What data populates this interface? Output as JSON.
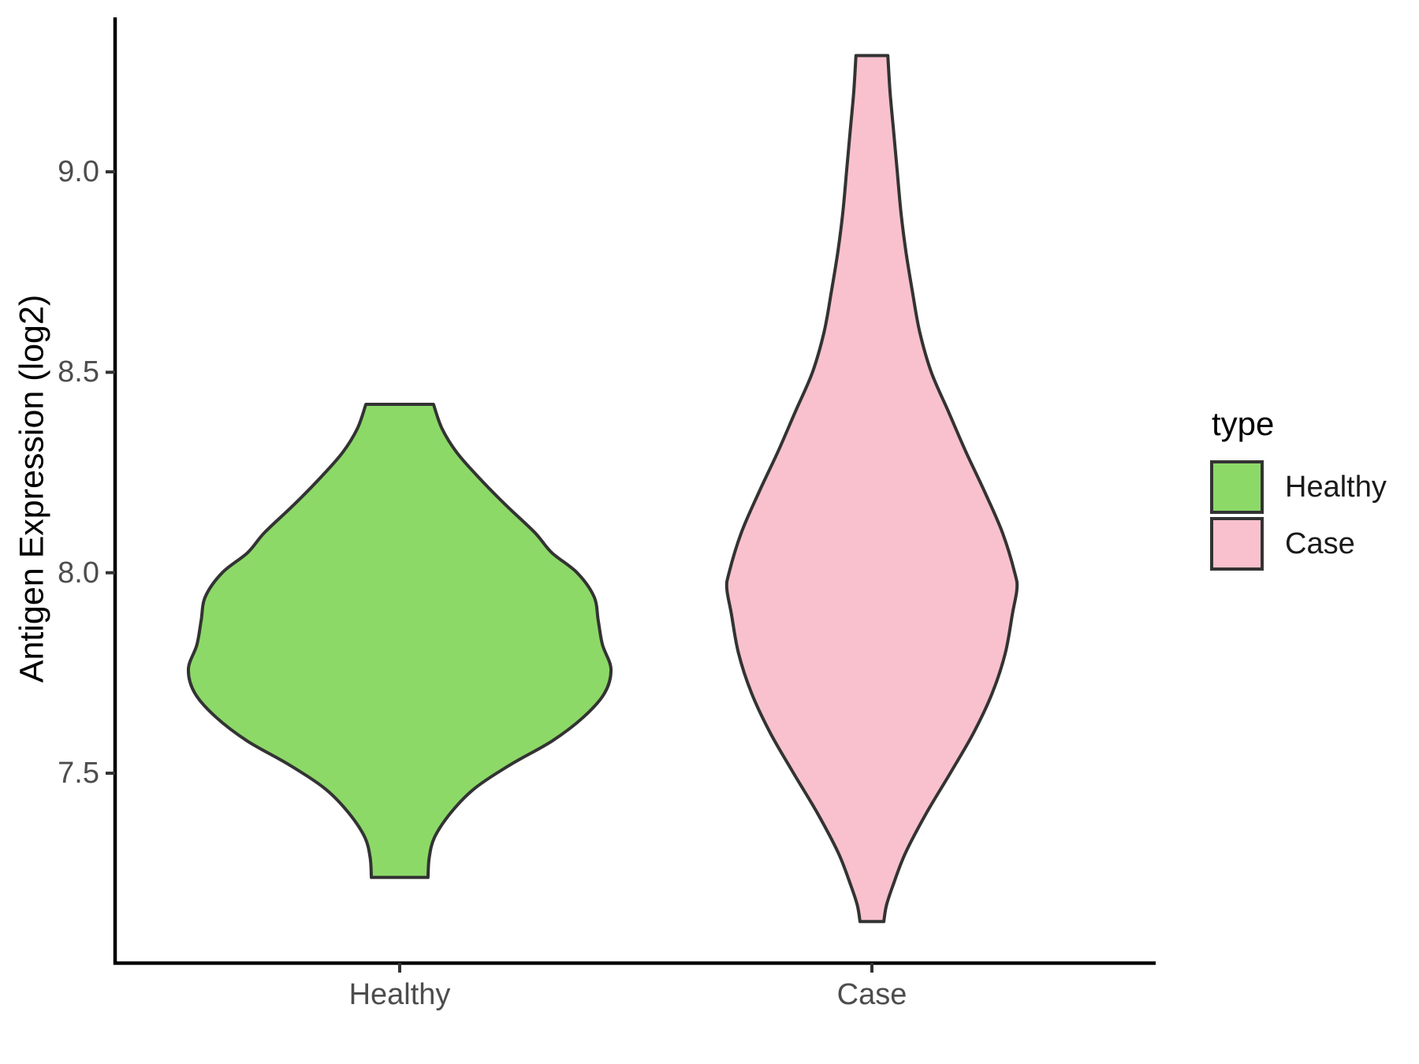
{
  "chart_data": {
    "type": "violin",
    "title": "",
    "xlabel": "",
    "ylabel": "Antigen Expression (log2)",
    "categories": [
      "Healthy",
      "Case"
    ],
    "y_axis": {
      "ticks": [
        9.0,
        8.5,
        8.0,
        7.5
      ],
      "tick_labels": [
        "9.0",
        "8.5",
        "8.0",
        "7.5"
      ],
      "range_shown": [
        7.03,
        9.39
      ]
    },
    "legend": {
      "title": "type",
      "position": "right",
      "entries": [
        {
          "label": "Healthy",
          "color": "#8CD968"
        },
        {
          "label": "Case",
          "color": "#F8C1CD"
        }
      ]
    },
    "colors": {
      "healthy_fill": "#8CD968",
      "case_fill": "#F8C1CD",
      "violin_outline": "#333333",
      "axis_line": "#000000",
      "tick_mark": "#333333",
      "tick_text": "#4d4d4d"
    },
    "series": [
      {
        "name": "Healthy",
        "color": "#8CD968",
        "y_min": 7.24,
        "y_max": 8.42,
        "density_profile": [
          [
            8.42,
            0.16
          ],
          [
            8.36,
            0.2
          ],
          [
            8.3,
            0.27
          ],
          [
            8.24,
            0.37
          ],
          [
            8.17,
            0.5
          ],
          [
            8.1,
            0.64
          ],
          [
            8.05,
            0.72
          ],
          [
            8.0,
            0.84
          ],
          [
            7.94,
            0.92
          ],
          [
            7.88,
            0.94
          ],
          [
            7.82,
            0.96
          ],
          [
            7.76,
            1.0
          ],
          [
            7.7,
            0.97
          ],
          [
            7.64,
            0.87
          ],
          [
            7.58,
            0.72
          ],
          [
            7.52,
            0.52
          ],
          [
            7.46,
            0.35
          ],
          [
            7.4,
            0.24
          ],
          [
            7.34,
            0.165
          ],
          [
            7.29,
            0.14
          ],
          [
            7.24,
            0.134
          ]
        ]
      },
      {
        "name": "Case",
        "color": "#F8C1CD",
        "y_min": 7.13,
        "y_max": 9.29,
        "density_profile": [
          [
            9.29,
            0.11
          ],
          [
            9.2,
            0.125
          ],
          [
            9.1,
            0.15
          ],
          [
            9.0,
            0.175
          ],
          [
            8.9,
            0.2
          ],
          [
            8.8,
            0.235
          ],
          [
            8.7,
            0.28
          ],
          [
            8.6,
            0.33
          ],
          [
            8.5,
            0.41
          ],
          [
            8.4,
            0.53
          ],
          [
            8.3,
            0.65
          ],
          [
            8.2,
            0.78
          ],
          [
            8.1,
            0.9
          ],
          [
            8.0,
            0.985
          ],
          [
            7.96,
            1.0
          ],
          [
            7.9,
            0.97
          ],
          [
            7.8,
            0.92
          ],
          [
            7.7,
            0.83
          ],
          [
            7.6,
            0.7
          ],
          [
            7.5,
            0.54
          ],
          [
            7.4,
            0.375
          ],
          [
            7.3,
            0.23
          ],
          [
            7.22,
            0.145
          ],
          [
            7.17,
            0.1
          ],
          [
            7.13,
            0.082
          ]
        ]
      }
    ]
  }
}
